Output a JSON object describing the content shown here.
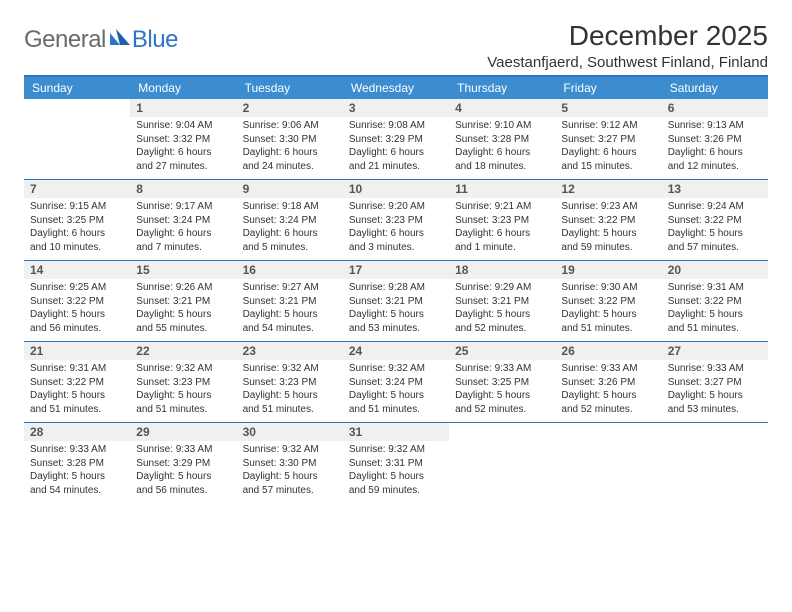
{
  "logo": {
    "general": "General",
    "blue": "Blue"
  },
  "title": "December 2025",
  "location": "Vaestanfjaerd, Southwest Finland, Finland",
  "colors": {
    "header_bg": "#3c8cd0",
    "header_text": "#ffffff",
    "rule": "#2e75c6",
    "daynum_bg": "#f0f0f0",
    "text": "#333333",
    "logo_gray": "#6a6a6a",
    "logo_blue": "#2e75c6"
  },
  "day_labels": [
    "Sunday",
    "Monday",
    "Tuesday",
    "Wednesday",
    "Thursday",
    "Friday",
    "Saturday"
  ],
  "weeks": [
    [
      null,
      {
        "n": "1",
        "sunrise": "9:04 AM",
        "sunset": "3:32 PM",
        "daylight": "6 hours and 27 minutes."
      },
      {
        "n": "2",
        "sunrise": "9:06 AM",
        "sunset": "3:30 PM",
        "daylight": "6 hours and 24 minutes."
      },
      {
        "n": "3",
        "sunrise": "9:08 AM",
        "sunset": "3:29 PM",
        "daylight": "6 hours and 21 minutes."
      },
      {
        "n": "4",
        "sunrise": "9:10 AM",
        "sunset": "3:28 PM",
        "daylight": "6 hours and 18 minutes."
      },
      {
        "n": "5",
        "sunrise": "9:12 AM",
        "sunset": "3:27 PM",
        "daylight": "6 hours and 15 minutes."
      },
      {
        "n": "6",
        "sunrise": "9:13 AM",
        "sunset": "3:26 PM",
        "daylight": "6 hours and 12 minutes."
      }
    ],
    [
      {
        "n": "7",
        "sunrise": "9:15 AM",
        "sunset": "3:25 PM",
        "daylight": "6 hours and 10 minutes."
      },
      {
        "n": "8",
        "sunrise": "9:17 AM",
        "sunset": "3:24 PM",
        "daylight": "6 hours and 7 minutes."
      },
      {
        "n": "9",
        "sunrise": "9:18 AM",
        "sunset": "3:24 PM",
        "daylight": "6 hours and 5 minutes."
      },
      {
        "n": "10",
        "sunrise": "9:20 AM",
        "sunset": "3:23 PM",
        "daylight": "6 hours and 3 minutes."
      },
      {
        "n": "11",
        "sunrise": "9:21 AM",
        "sunset": "3:23 PM",
        "daylight": "6 hours and 1 minute."
      },
      {
        "n": "12",
        "sunrise": "9:23 AM",
        "sunset": "3:22 PM",
        "daylight": "5 hours and 59 minutes."
      },
      {
        "n": "13",
        "sunrise": "9:24 AM",
        "sunset": "3:22 PM",
        "daylight": "5 hours and 57 minutes."
      }
    ],
    [
      {
        "n": "14",
        "sunrise": "9:25 AM",
        "sunset": "3:22 PM",
        "daylight": "5 hours and 56 minutes."
      },
      {
        "n": "15",
        "sunrise": "9:26 AM",
        "sunset": "3:21 PM",
        "daylight": "5 hours and 55 minutes."
      },
      {
        "n": "16",
        "sunrise": "9:27 AM",
        "sunset": "3:21 PM",
        "daylight": "5 hours and 54 minutes."
      },
      {
        "n": "17",
        "sunrise": "9:28 AM",
        "sunset": "3:21 PM",
        "daylight": "5 hours and 53 minutes."
      },
      {
        "n": "18",
        "sunrise": "9:29 AM",
        "sunset": "3:21 PM",
        "daylight": "5 hours and 52 minutes."
      },
      {
        "n": "19",
        "sunrise": "9:30 AM",
        "sunset": "3:22 PM",
        "daylight": "5 hours and 51 minutes."
      },
      {
        "n": "20",
        "sunrise": "9:31 AM",
        "sunset": "3:22 PM",
        "daylight": "5 hours and 51 minutes."
      }
    ],
    [
      {
        "n": "21",
        "sunrise": "9:31 AM",
        "sunset": "3:22 PM",
        "daylight": "5 hours and 51 minutes."
      },
      {
        "n": "22",
        "sunrise": "9:32 AM",
        "sunset": "3:23 PM",
        "daylight": "5 hours and 51 minutes."
      },
      {
        "n": "23",
        "sunrise": "9:32 AM",
        "sunset": "3:23 PM",
        "daylight": "5 hours and 51 minutes."
      },
      {
        "n": "24",
        "sunrise": "9:32 AM",
        "sunset": "3:24 PM",
        "daylight": "5 hours and 51 minutes."
      },
      {
        "n": "25",
        "sunrise": "9:33 AM",
        "sunset": "3:25 PM",
        "daylight": "5 hours and 52 minutes."
      },
      {
        "n": "26",
        "sunrise": "9:33 AM",
        "sunset": "3:26 PM",
        "daylight": "5 hours and 52 minutes."
      },
      {
        "n": "27",
        "sunrise": "9:33 AM",
        "sunset": "3:27 PM",
        "daylight": "5 hours and 53 minutes."
      }
    ],
    [
      {
        "n": "28",
        "sunrise": "9:33 AM",
        "sunset": "3:28 PM",
        "daylight": "5 hours and 54 minutes."
      },
      {
        "n": "29",
        "sunrise": "9:33 AM",
        "sunset": "3:29 PM",
        "daylight": "5 hours and 56 minutes."
      },
      {
        "n": "30",
        "sunrise": "9:32 AM",
        "sunset": "3:30 PM",
        "daylight": "5 hours and 57 minutes."
      },
      {
        "n": "31",
        "sunrise": "9:32 AM",
        "sunset": "3:31 PM",
        "daylight": "5 hours and 59 minutes."
      },
      null,
      null,
      null
    ]
  ],
  "labels": {
    "sunrise": "Sunrise:",
    "sunset": "Sunset:",
    "daylight": "Daylight:"
  }
}
